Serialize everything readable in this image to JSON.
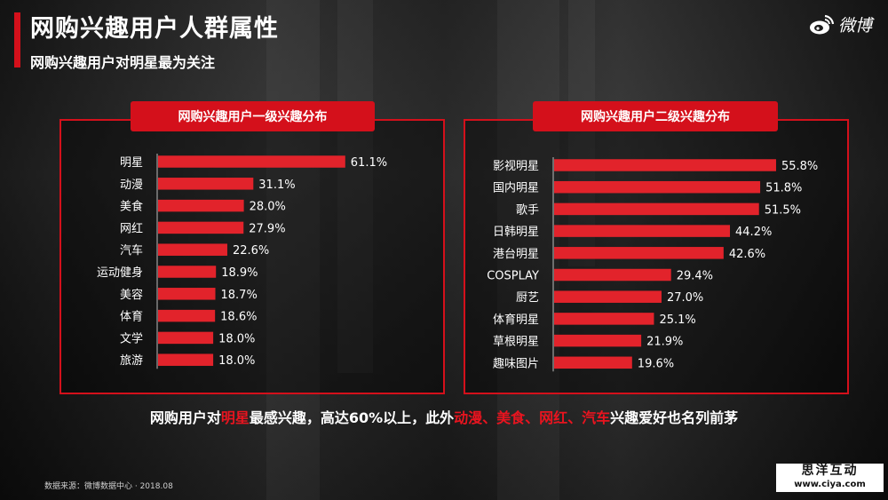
{
  "header": {
    "title": "网购兴趣用户人群属性",
    "subtitle": "网购兴趣用户对明星最为关注",
    "logo_text": "微博",
    "logo_icon": "weibo-eye-icon"
  },
  "colors": {
    "accent": "#d4101b",
    "bar": "#e2232b"
  },
  "chart_data": [
    {
      "type": "bar",
      "orientation": "horizontal",
      "title": "网购兴趣用户一级兴趣分布",
      "categories": [
        "明星",
        "动漫",
        "美食",
        "网红",
        "汽车",
        "运动健身",
        "美容",
        "体育",
        "文学",
        "旅游"
      ],
      "values": [
        61.1,
        31.1,
        28.0,
        27.9,
        22.6,
        18.9,
        18.7,
        18.6,
        18.0,
        18.0
      ],
      "labels": [
        "61.1%",
        "31.1%",
        "28.0%",
        "27.9%",
        "22.6%",
        "18.9%",
        "18.7%",
        "18.6%",
        "18.0%",
        "18.0%"
      ],
      "unit": "%",
      "xlim": [
        0,
        100
      ]
    },
    {
      "type": "bar",
      "orientation": "horizontal",
      "title": "网购兴趣用户二级兴趣分布",
      "categories": [
        "影视明星",
        "国内明星",
        "歌手",
        "日韩明星",
        "港台明星",
        "COSPLAY",
        "厨艺",
        "体育明星",
        "草根明星",
        "趣味图片"
      ],
      "values": [
        55.8,
        51.8,
        51.5,
        44.2,
        42.6,
        29.4,
        27.0,
        25.1,
        21.9,
        19.6
      ],
      "labels": [
        "55.8%",
        "51.8%",
        "51.5%",
        "44.2%",
        "42.6%",
        "29.4%",
        "27.0%",
        "25.1%",
        "21.9%",
        "19.6%"
      ],
      "unit": "%",
      "xlim": [
        0,
        100
      ]
    }
  ],
  "conclusion": {
    "p1": "网购用户对",
    "h1": "明星",
    "p2": "最感兴趣，高达60%以上，此外",
    "h2": "动漫、美食、网红、汽车",
    "p3": "兴趣爱好也名列前茅"
  },
  "footer": {
    "source": "数据来源：微博数据中心 · 2018.08",
    "watermark_line1": "思洋互动",
    "watermark_line2": "www.ciya.com"
  }
}
